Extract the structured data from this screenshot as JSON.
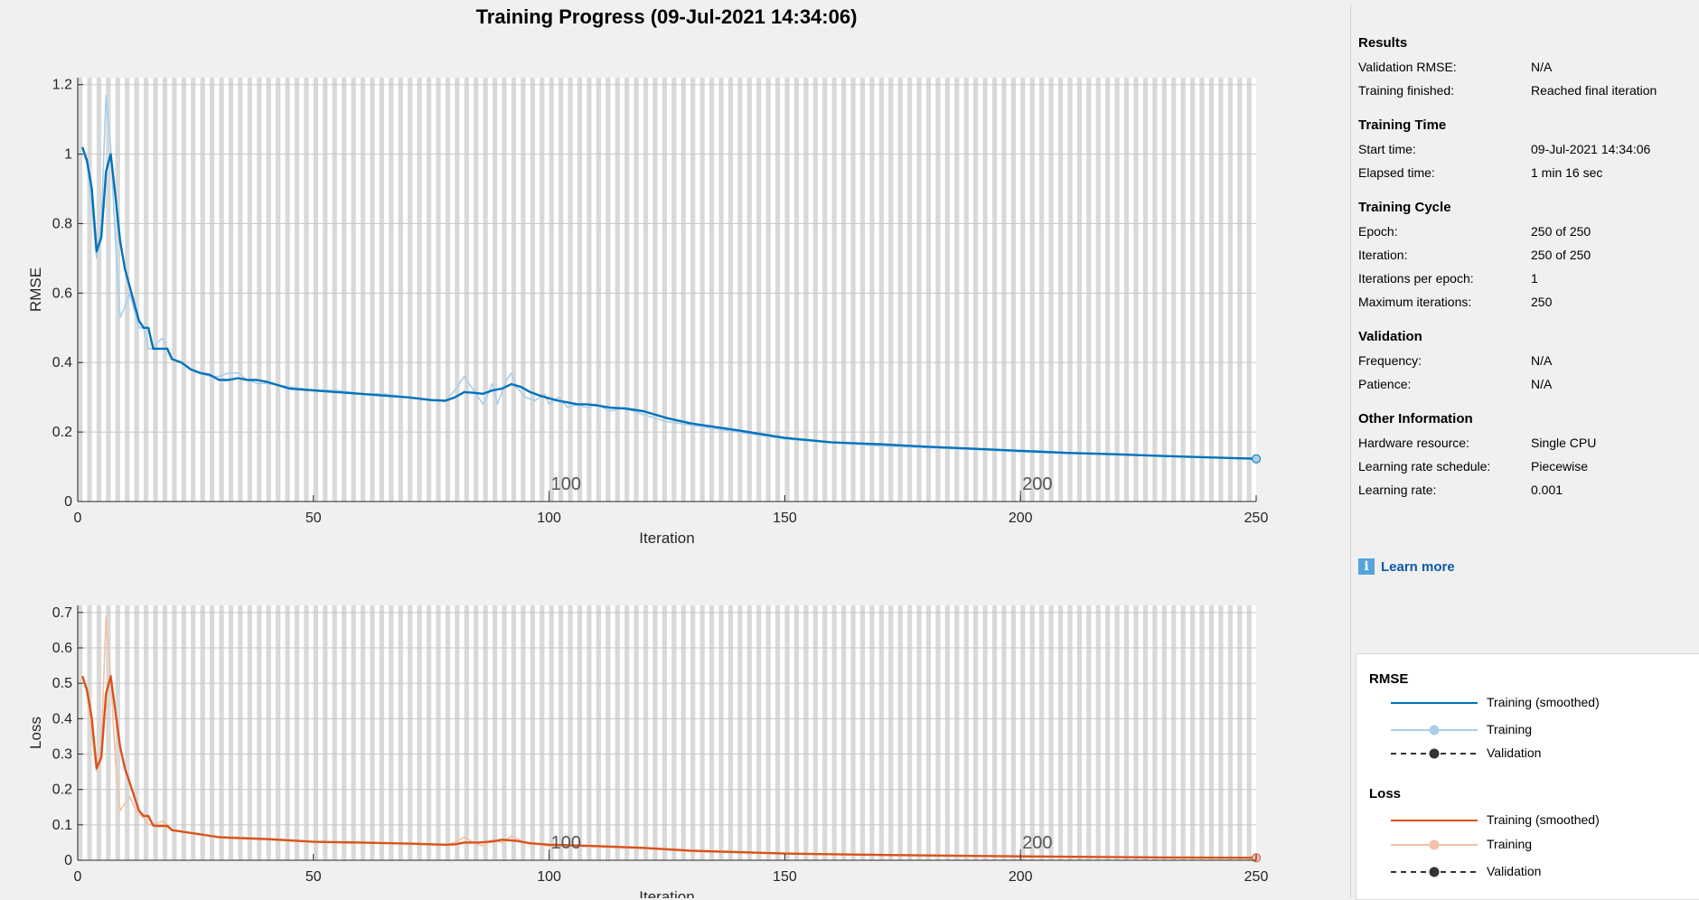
{
  "title": "Training Progress (09-Jul-2021 14:34:06)",
  "colors": {
    "rmse_smoothed": "#0072bd",
    "rmse_raw": "#a9cfe9",
    "loss_smoothed": "#d95319",
    "loss_raw": "#f2c2aa",
    "validation": "#333333",
    "stripe": "#d9d9d9"
  },
  "chart_data": [
    {
      "type": "line",
      "ylabel": "RMSE",
      "xlabel": "Iteration",
      "xlim": [
        0,
        250
      ],
      "ylim": [
        0,
        1.22
      ],
      "xticks": [
        0,
        50,
        100,
        150,
        200,
        250
      ],
      "yticks": [
        0,
        0.2,
        0.4,
        0.6,
        0.8,
        1,
        1.2
      ],
      "ytick_labels": [
        "0",
        "0.2",
        "0.4",
        "0.6",
        "0.8",
        "1",
        "1.2"
      ],
      "epoch_labels": [
        {
          "x": 100,
          "label": "100"
        },
        {
          "x": 200,
          "label": "200"
        }
      ],
      "grid": "vertical stripes per epoch",
      "series": [
        {
          "name": "Training",
          "role": "raw",
          "points": [
            [
              1,
              1.02
            ],
            [
              2,
              0.97
            ],
            [
              3,
              0.85
            ],
            [
              4,
              0.7
            ],
            [
              5,
              0.8
            ],
            [
              6,
              1.17
            ],
            [
              7,
              1.02
            ],
            [
              8,
              0.75
            ],
            [
              9,
              0.53
            ],
            [
              10,
              0.56
            ],
            [
              11,
              0.6
            ],
            [
              12,
              0.55
            ],
            [
              13,
              0.5
            ],
            [
              14,
              0.5
            ],
            [
              15,
              0.44
            ],
            [
              16,
              0.44
            ],
            [
              17,
              0.46
            ],
            [
              18,
              0.47
            ],
            [
              19,
              0.44
            ],
            [
              20,
              0.41
            ],
            [
              22,
              0.4
            ],
            [
              24,
              0.38
            ],
            [
              26,
              0.37
            ],
            [
              28,
              0.36
            ],
            [
              30,
              0.36
            ],
            [
              32,
              0.37
            ],
            [
              34,
              0.37
            ],
            [
              36,
              0.35
            ],
            [
              38,
              0.34
            ],
            [
              40,
              0.34
            ],
            [
              45,
              0.33
            ],
            [
              50,
              0.32
            ],
            [
              55,
              0.32
            ],
            [
              60,
              0.31
            ],
            [
              65,
              0.31
            ],
            [
              70,
              0.3
            ],
            [
              75,
              0.29
            ],
            [
              78,
              0.29
            ],
            [
              80,
              0.32
            ],
            [
              82,
              0.36
            ],
            [
              84,
              0.32
            ],
            [
              86,
              0.28
            ],
            [
              88,
              0.34
            ],
            [
              89,
              0.28
            ],
            [
              91,
              0.35
            ],
            [
              92,
              0.37
            ],
            [
              93,
              0.33
            ],
            [
              95,
              0.3
            ],
            [
              97,
              0.29
            ],
            [
              99,
              0.31
            ],
            [
              100,
              0.28
            ],
            [
              102,
              0.3
            ],
            [
              104,
              0.27
            ],
            [
              106,
              0.28
            ],
            [
              108,
              0.27
            ],
            [
              110,
              0.28
            ],
            [
              113,
              0.26
            ],
            [
              116,
              0.27
            ],
            [
              120,
              0.25
            ],
            [
              125,
              0.23
            ],
            [
              130,
              0.22
            ],
            [
              140,
              0.2
            ],
            [
              150,
              0.18
            ],
            [
              160,
              0.17
            ],
            [
              170,
              0.16
            ],
            [
              180,
              0.155
            ],
            [
              190,
              0.15
            ],
            [
              200,
              0.143
            ],
            [
              210,
              0.138
            ],
            [
              220,
              0.135
            ],
            [
              230,
              0.13
            ],
            [
              240,
              0.127
            ],
            [
              250,
              0.123
            ]
          ]
        },
        {
          "name": "Training (smoothed)",
          "role": "smoothed",
          "points": [
            [
              1,
              1.02
            ],
            [
              2,
              0.98
            ],
            [
              3,
              0.9
            ],
            [
              4,
              0.72
            ],
            [
              5,
              0.76
            ],
            [
              6,
              0.95
            ],
            [
              7,
              1.0
            ],
            [
              8,
              0.88
            ],
            [
              9,
              0.75
            ],
            [
              10,
              0.67
            ],
            [
              11,
              0.62
            ],
            [
              12,
              0.57
            ],
            [
              13,
              0.52
            ],
            [
              14,
              0.5
            ],
            [
              15,
              0.5
            ],
            [
              16,
              0.44
            ],
            [
              17,
              0.44
            ],
            [
              18,
              0.44
            ],
            [
              19,
              0.44
            ],
            [
              20,
              0.41
            ],
            [
              22,
              0.4
            ],
            [
              24,
              0.38
            ],
            [
              26,
              0.37
            ],
            [
              28,
              0.365
            ],
            [
              30,
              0.35
            ],
            [
              32,
              0.35
            ],
            [
              34,
              0.355
            ],
            [
              36,
              0.35
            ],
            [
              38,
              0.35
            ],
            [
              40,
              0.345
            ],
            [
              45,
              0.325
            ],
            [
              50,
              0.32
            ],
            [
              55,
              0.315
            ],
            [
              60,
              0.31
            ],
            [
              65,
              0.305
            ],
            [
              70,
              0.3
            ],
            [
              75,
              0.292
            ],
            [
              78,
              0.29
            ],
            [
              80,
              0.3
            ],
            [
              82,
              0.315
            ],
            [
              84,
              0.313
            ],
            [
              86,
              0.31
            ],
            [
              88,
              0.32
            ],
            [
              90,
              0.325
            ],
            [
              92,
              0.338
            ],
            [
              94,
              0.33
            ],
            [
              96,
              0.315
            ],
            [
              98,
              0.305
            ],
            [
              100,
              0.297
            ],
            [
              102,
              0.29
            ],
            [
              104,
              0.285
            ],
            [
              106,
              0.28
            ],
            [
              108,
              0.28
            ],
            [
              110,
              0.277
            ],
            [
              113,
              0.27
            ],
            [
              116,
              0.268
            ],
            [
              120,
              0.26
            ],
            [
              125,
              0.24
            ],
            [
              130,
              0.225
            ],
            [
              140,
              0.205
            ],
            [
              150,
              0.183
            ],
            [
              160,
              0.17
            ],
            [
              170,
              0.165
            ],
            [
              180,
              0.158
            ],
            [
              190,
              0.152
            ],
            [
              200,
              0.146
            ],
            [
              210,
              0.14
            ],
            [
              220,
              0.136
            ],
            [
              230,
              0.131
            ],
            [
              240,
              0.127
            ],
            [
              250,
              0.123
            ]
          ]
        }
      ]
    },
    {
      "type": "line",
      "ylabel": "Loss",
      "xlabel": "Iteration",
      "xlim": [
        0,
        250
      ],
      "ylim": [
        0,
        0.72
      ],
      "xticks": [
        0,
        50,
        100,
        150,
        200,
        250
      ],
      "yticks": [
        0,
        0.1,
        0.2,
        0.3,
        0.4,
        0.5,
        0.6,
        0.7
      ],
      "ytick_labels": [
        "0",
        "0.1",
        "0.2",
        "0.3",
        "0.4",
        "0.5",
        "0.6",
        "0.7"
      ],
      "epoch_labels": [
        {
          "x": 100,
          "label": "100"
        },
        {
          "x": 200,
          "label": "200"
        }
      ],
      "grid": "vertical stripes per epoch",
      "series": [
        {
          "name": "Training",
          "role": "raw",
          "points": [
            [
              1,
              0.52
            ],
            [
              2,
              0.47
            ],
            [
              3,
              0.36
            ],
            [
              4,
              0.25
            ],
            [
              5,
              0.32
            ],
            [
              6,
              0.69
            ],
            [
              7,
              0.52
            ],
            [
              8,
              0.28
            ],
            [
              9,
              0.14
            ],
            [
              10,
              0.16
            ],
            [
              11,
              0.18
            ],
            [
              12,
              0.15
            ],
            [
              13,
              0.13
            ],
            [
              14,
              0.12
            ],
            [
              15,
              0.1
            ],
            [
              16,
              0.1
            ],
            [
              17,
              0.105
            ],
            [
              18,
              0.11
            ],
            [
              19,
              0.1
            ],
            [
              20,
              0.085
            ],
            [
              25,
              0.075
            ],
            [
              30,
              0.065
            ],
            [
              35,
              0.065
            ],
            [
              40,
              0.06
            ],
            [
              50,
              0.052
            ],
            [
              60,
              0.05
            ],
            [
              70,
              0.046
            ],
            [
              78,
              0.043
            ],
            [
              80,
              0.05
            ],
            [
              82,
              0.065
            ],
            [
              84,
              0.05
            ],
            [
              86,
              0.04
            ],
            [
              88,
              0.058
            ],
            [
              90,
              0.05
            ],
            [
              92,
              0.068
            ],
            [
              95,
              0.05
            ],
            [
              100,
              0.04
            ],
            [
              110,
              0.038
            ],
            [
              120,
              0.033
            ],
            [
              130,
              0.025
            ],
            [
              150,
              0.018
            ],
            [
              170,
              0.014
            ],
            [
              200,
              0.01
            ],
            [
              230,
              0.008
            ],
            [
              250,
              0.007
            ]
          ]
        },
        {
          "name": "Training (smoothed)",
          "role": "smoothed",
          "points": [
            [
              1,
              0.52
            ],
            [
              2,
              0.48
            ],
            [
              3,
              0.4
            ],
            [
              4,
              0.26
            ],
            [
              5,
              0.29
            ],
            [
              6,
              0.47
            ],
            [
              7,
              0.52
            ],
            [
              8,
              0.42
            ],
            [
              9,
              0.32
            ],
            [
              10,
              0.26
            ],
            [
              11,
              0.22
            ],
            [
              12,
              0.18
            ],
            [
              13,
              0.14
            ],
            [
              14,
              0.125
            ],
            [
              15,
              0.125
            ],
            [
              16,
              0.098
            ],
            [
              17,
              0.097
            ],
            [
              18,
              0.097
            ],
            [
              19,
              0.097
            ],
            [
              20,
              0.085
            ],
            [
              25,
              0.075
            ],
            [
              30,
              0.065
            ],
            [
              35,
              0.062
            ],
            [
              40,
              0.06
            ],
            [
              50,
              0.052
            ],
            [
              60,
              0.05
            ],
            [
              70,
              0.047
            ],
            [
              78,
              0.044
            ],
            [
              80,
              0.045
            ],
            [
              82,
              0.05
            ],
            [
              85,
              0.05
            ],
            [
              88,
              0.053
            ],
            [
              90,
              0.058
            ],
            [
              93,
              0.055
            ],
            [
              96,
              0.048
            ],
            [
              100,
              0.044
            ],
            [
              110,
              0.04
            ],
            [
              120,
              0.035
            ],
            [
              130,
              0.027
            ],
            [
              150,
              0.019
            ],
            [
              170,
              0.015
            ],
            [
              200,
              0.011
            ],
            [
              230,
              0.008
            ],
            [
              250,
              0.007
            ]
          ]
        }
      ]
    }
  ],
  "sidebar": {
    "results": {
      "title": "Results",
      "rows": [
        {
          "label": "Validation RMSE:",
          "value": "N/A"
        },
        {
          "label": "Training finished:",
          "value": "Reached final iteration"
        }
      ]
    },
    "training_time": {
      "title": "Training Time",
      "rows": [
        {
          "label": "Start time:",
          "value": "09-Jul-2021 14:34:06"
        },
        {
          "label": "Elapsed time:",
          "value": "1 min 16 sec"
        }
      ]
    },
    "training_cycle": {
      "title": "Training Cycle",
      "rows": [
        {
          "label": "Epoch:",
          "value": "250 of 250"
        },
        {
          "label": "Iteration:",
          "value": "250 of 250"
        },
        {
          "label": "Iterations per epoch:",
          "value": "1"
        },
        {
          "label": "Maximum iterations:",
          "value": "250"
        }
      ]
    },
    "validation": {
      "title": "Validation",
      "rows": [
        {
          "label": "Frequency:",
          "value": "N/A"
        },
        {
          "label": "Patience:",
          "value": "N/A"
        }
      ]
    },
    "other": {
      "title": "Other Information",
      "rows": [
        {
          "label": "Hardware resource:",
          "value": "Single CPU"
        },
        {
          "label": "Learning rate schedule:",
          "value": "Piecewise"
        },
        {
          "label": "Learning rate:",
          "value": "0.001"
        }
      ]
    },
    "learn_more": "Learn more"
  },
  "legend": {
    "rmse_title": "RMSE",
    "loss_title": "Loss",
    "rmse_items": [
      "Training (smoothed)",
      "Training",
      "Validation"
    ],
    "loss_items": [
      "Training (smoothed)",
      "Training",
      "Validation"
    ]
  }
}
